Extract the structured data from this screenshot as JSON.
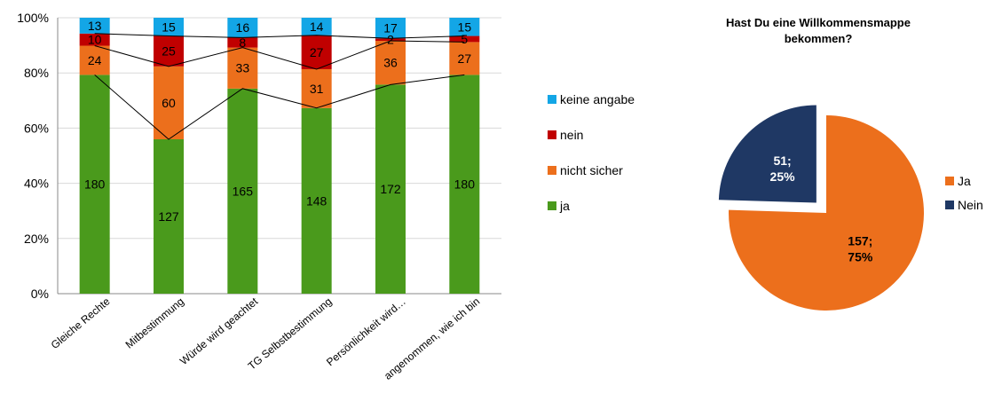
{
  "chart_data": [
    {
      "type": "bar",
      "stacked": "percent",
      "categories": [
        "Gleiche Rechte",
        "Mitbestimmung",
        "Würde wird geachtet",
        "TG Selbstbestimmung",
        "Persönlichkeit wird…",
        "angenommen, wie ich bin"
      ],
      "series": [
        {
          "name": "ja",
          "color": "#4a9a1c",
          "values": [
            180,
            127,
            165,
            148,
            172,
            180
          ]
        },
        {
          "name": "nicht sicher",
          "color": "#ec6f1c",
          "values": [
            24,
            60,
            33,
            31,
            36,
            27
          ]
        },
        {
          "name": "nein",
          "color": "#c00000",
          "values": [
            10,
            25,
            8,
            27,
            2,
            5
          ]
        },
        {
          "name": "keine angabe",
          "color": "#13a6e6",
          "values": [
            13,
            15,
            16,
            14,
            17,
            15
          ]
        }
      ],
      "yticks": [
        "0%",
        "20%",
        "40%",
        "60%",
        "80%",
        "100%"
      ],
      "ylim": [
        0,
        100
      ],
      "series_lines": true,
      "legend_position": "right",
      "legend_order": [
        "keine angabe",
        "nein",
        "nicht sicher",
        "ja"
      ]
    },
    {
      "type": "pie",
      "title": "Hast Du eine Willkommensmappe bekommen?",
      "title_lines": [
        "Hast Du eine Willkommensmappe",
        "bekommen?"
      ],
      "slices": [
        {
          "name": "Ja",
          "value": 157,
          "percent": "75%",
          "label": "157;",
          "label2": "75%",
          "color": "#ec6f1c",
          "label_color": "#000000"
        },
        {
          "name": "Nein",
          "value": 51,
          "percent": "25%",
          "label": "51;",
          "label2": "25%",
          "color": "#1f3864",
          "label_color": "#ffffff",
          "exploded": true
        }
      ],
      "legend_position": "right"
    }
  ]
}
